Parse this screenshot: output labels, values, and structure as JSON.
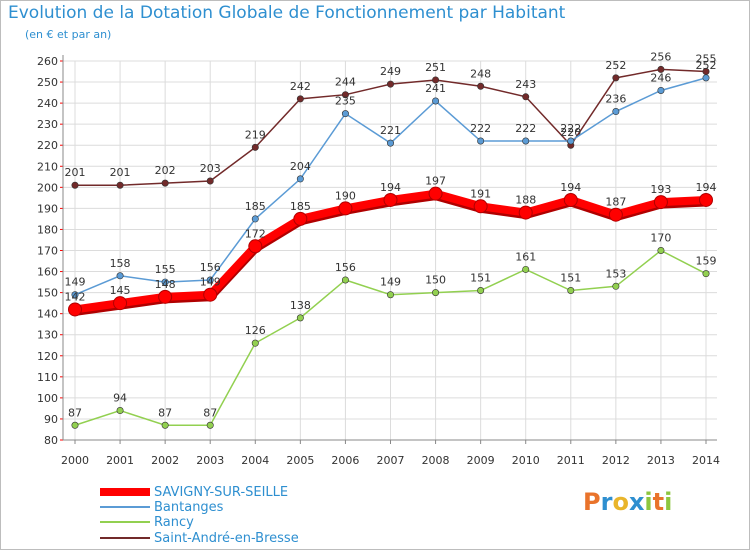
{
  "chart_data": {
    "type": "line",
    "title": "Evolution de la Dotation Globale de Fonctionnement par Habitant",
    "subtitle": "(en € et par an)",
    "xlabel": "",
    "ylabel": "",
    "ylim": [
      80,
      260
    ],
    "ytick_step": 10,
    "grid": true,
    "legend_position": "bottom-left",
    "categories": [
      "2000",
      "2001",
      "2002",
      "2003",
      "2004",
      "2005",
      "2006",
      "2007",
      "2008",
      "2009",
      "2010",
      "2011",
      "2012",
      "2013",
      "2014"
    ],
    "series": [
      {
        "name": "Saint-André-en-Bresse",
        "color": "#722a2a",
        "values": [
          201,
          201,
          202,
          203,
          219,
          242,
          244,
          249,
          251,
          248,
          243,
          220,
          252,
          256,
          255
        ]
      },
      {
        "name": "Bantanges",
        "color": "#5b9bd5",
        "values": [
          149,
          158,
          155,
          156,
          185,
          204,
          235,
          221,
          241,
          222,
          222,
          222,
          236,
          246,
          252
        ]
      },
      {
        "name": "Rancy",
        "color": "#92d050",
        "values": [
          87,
          94,
          87,
          87,
          126,
          138,
          156,
          149,
          150,
          151,
          161,
          151,
          153,
          170,
          159
        ]
      },
      {
        "name": "SAVIGNY-SUR-SEILLE",
        "color": "#ff0000",
        "values": [
          142,
          145,
          148,
          149,
          172,
          185,
          190,
          194,
          197,
          191,
          188,
          194,
          187,
          193,
          194
        ]
      }
    ],
    "legend": [
      "SAVIGNY-SUR-SEILLE",
      "Bantanges",
      "Rancy",
      "Saint-André-en-Bresse"
    ]
  },
  "logo": {
    "letters": [
      "P",
      "r",
      "o",
      "x",
      "i",
      "t",
      "i"
    ],
    "colors": [
      "#e9732b",
      "#2e8fd0",
      "#e9b52b",
      "#2e8fd0",
      "#8dc63f",
      "#e9732b",
      "#8dc63f"
    ]
  }
}
